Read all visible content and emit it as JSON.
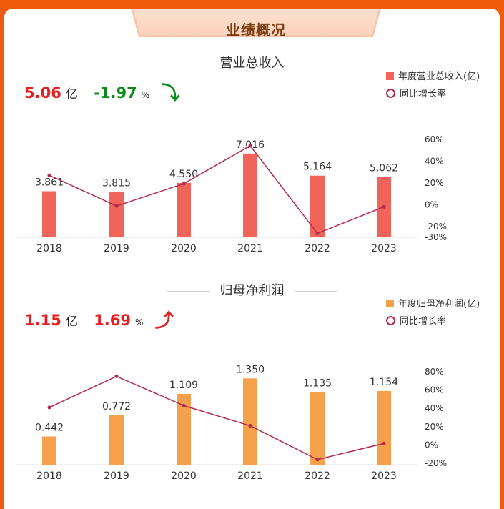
{
  "header": {
    "title": "业绩概况"
  },
  "colors": {
    "revenue_bar": "#f0645a",
    "profit_bar": "#f5a04a",
    "yoy_line": "#b52a4f",
    "up": "#e51e1e",
    "down": "#0c8a1a"
  },
  "revenue": {
    "section_title": "营业总收入",
    "latest_value": "5.06",
    "latest_unit": "亿",
    "yoy_value": "-1.97",
    "yoy_unit": "%",
    "trend_icon": "arrow-down-icon",
    "trend_glyph": "⤵",
    "legend_bar": "年度营业总收入(亿)",
    "legend_line": "同比增长率"
  },
  "profit": {
    "section_title": "归母净利润",
    "latest_value": "1.15",
    "latest_unit": "亿",
    "yoy_value": "1.69",
    "yoy_unit": "%",
    "trend_icon": "arrow-up-icon",
    "trend_glyph": "⤴",
    "legend_bar": "年度归母净利润(亿)",
    "legend_line": "同比增长率"
  },
  "chart_data": [
    {
      "type": "bar",
      "categories": [
        "2018",
        "2019",
        "2020",
        "2021",
        "2022",
        "2023"
      ],
      "series": [
        {
          "name": "年度营业总收入(亿)",
          "type": "bar",
          "axis": "left",
          "values": [
            3.861,
            3.815,
            4.55,
            7.016,
            5.164,
            5.062
          ],
          "labels": [
            "3.861",
            "3.815",
            "4.550",
            "7.016",
            "5.164",
            "5.062"
          ]
        },
        {
          "name": "同比增长率",
          "type": "line",
          "axis": "right",
          "values": [
            27,
            -1.2,
            19.3,
            54.2,
            -26.4,
            -1.97
          ]
        }
      ],
      "left_ylim": [
        0,
        8.5
      ],
      "right_ylim": [
        -30,
        60
      ],
      "right_ticks": [
        60,
        40,
        20,
        0,
        -20,
        -30
      ],
      "right_tick_labels": [
        "60%",
        "40%",
        "20%",
        "0%",
        "-20%",
        "-30%"
      ],
      "legend": "top-right",
      "grid": false
    },
    {
      "type": "bar",
      "categories": [
        "2018",
        "2019",
        "2020",
        "2021",
        "2022",
        "2023"
      ],
      "series": [
        {
          "name": "年度归母净利润(亿)",
          "type": "bar",
          "axis": "left",
          "values": [
            0.442,
            0.772,
            1.109,
            1.35,
            1.135,
            1.154
          ],
          "labels": [
            "0.442",
            "0.772",
            "1.109",
            "1.350",
            "1.135",
            "1.154"
          ]
        },
        {
          "name": "同比增长率",
          "type": "line",
          "axis": "right",
          "values": [
            41,
            75,
            43,
            21,
            -16,
            1.69
          ]
        }
      ],
      "left_ylim": [
        0,
        1.6
      ],
      "right_ylim": [
        -20,
        80
      ],
      "right_ticks": [
        80,
        60,
        40,
        20,
        0,
        -20
      ],
      "right_tick_labels": [
        "80%",
        "60%",
        "40%",
        "20%",
        "0%",
        "-20%"
      ],
      "legend": "top-right",
      "grid": false
    }
  ]
}
